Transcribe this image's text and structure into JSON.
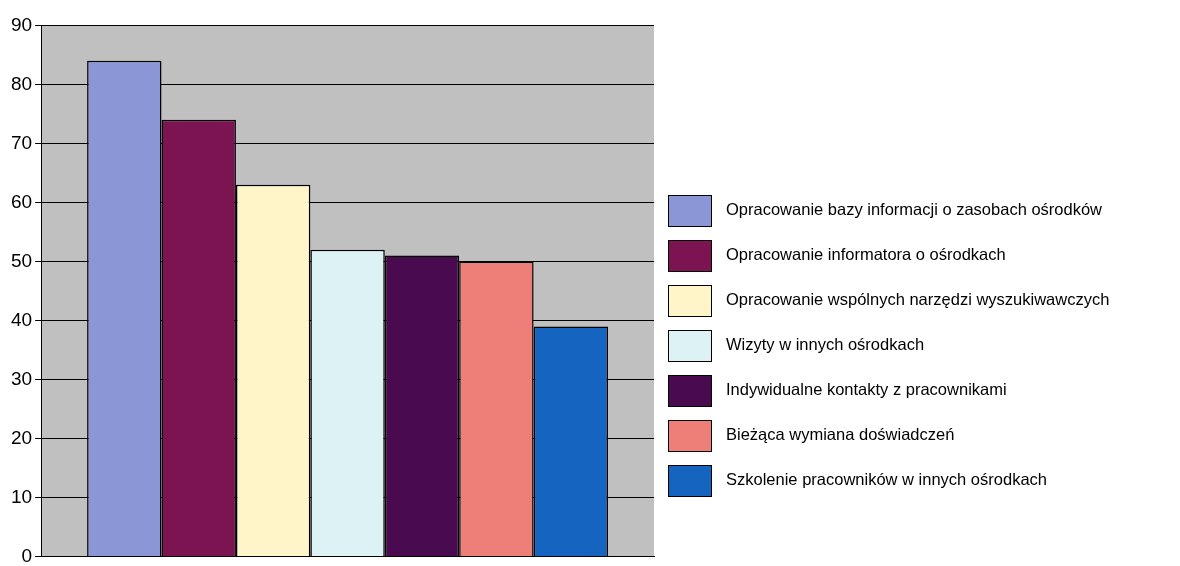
{
  "chart_data": {
    "type": "bar",
    "categories": [
      null
    ],
    "series": [
      {
        "name": "Opracowanie bazy informacji o zasobach ośrodków",
        "color": "#8b96d6",
        "values": [
          84
        ]
      },
      {
        "name": "Opracowanie informatora o ośrodkach",
        "color": "#7b1450",
        "values": [
          74
        ]
      },
      {
        "name": "Opracowanie wspólnych narzędzi wyszukiwawczych",
        "color": "#fff5c8",
        "values": [
          63
        ]
      },
      {
        "name": "Wizyty w innych ośrodkach",
        "color": "#ddf2f5",
        "values": [
          52
        ]
      },
      {
        "name": "Indywidualne kontakty z pracownikami",
        "color": "#4a0a4f",
        "values": [
          51
        ]
      },
      {
        "name": "Bieżąca wymiana doświadczeń",
        "color": "#ee7f78",
        "values": [
          50
        ]
      },
      {
        "name": "Szkolenie pracowników w innych ośrodkach",
        "color": "#1565c0",
        "values": [
          39
        ]
      }
    ],
    "ylim": [
      0,
      90
    ],
    "yticks": [
      0,
      10,
      20,
      30,
      40,
      50,
      60,
      70,
      80,
      90
    ],
    "grid": "y",
    "legend": "right"
  }
}
